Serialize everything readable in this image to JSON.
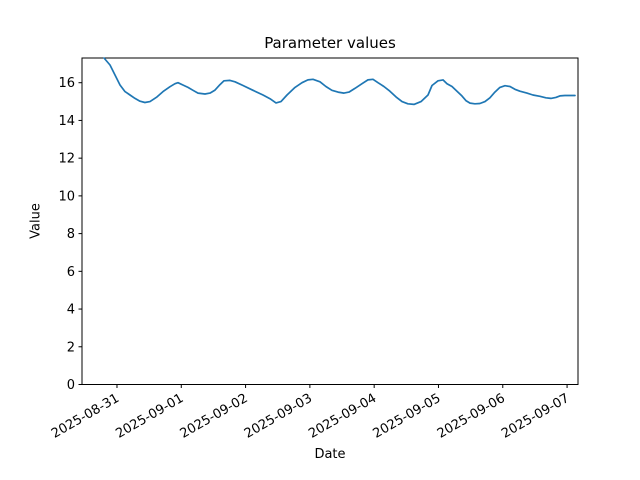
{
  "chart_data": {
    "type": "line",
    "title": "Parameter values",
    "xlabel": "Date",
    "ylabel": "Value",
    "grid": false,
    "legend": null,
    "line_color": "#1f77b4",
    "x_epoch_label": "2025-08-31",
    "x_range_days": [
      -0.544,
      7.17
    ],
    "ylim": [
      0,
      17.31
    ],
    "y_ticks": [
      0,
      2,
      4,
      6,
      8,
      10,
      12,
      14,
      16
    ],
    "x_tick_days": [
      0,
      1,
      2,
      3,
      4,
      5,
      6,
      7
    ],
    "x_tick_labels": [
      "2025-08-31",
      "2025-09-01",
      "2025-09-02",
      "2025-09-03",
      "2025-09-04",
      "2025-09-05",
      "2025-09-06",
      "2025-09-07"
    ],
    "series": [
      {
        "name": "parameter-values",
        "x_days": [
          -0.202,
          -0.109,
          -0.031,
          0.047,
          0.124,
          0.202,
          0.28,
          0.358,
          0.435,
          0.513,
          0.622,
          0.715,
          0.824,
          0.902,
          0.949,
          1.026,
          1.104,
          1.182,
          1.26,
          1.369,
          1.446,
          1.524,
          1.602,
          1.664,
          1.757,
          1.835,
          1.96,
          2.115,
          2.271,
          2.38,
          2.473,
          2.551,
          2.644,
          2.768,
          2.877,
          2.97,
          3.048,
          3.157,
          3.25,
          3.343,
          3.437,
          3.53,
          3.608,
          3.701,
          3.81,
          3.903,
          3.981,
          4.059,
          4.152,
          4.245,
          4.339,
          4.432,
          4.525,
          4.619,
          4.728,
          4.837,
          4.899,
          4.992,
          5.07,
          5.132,
          5.21,
          5.288,
          5.365,
          5.427,
          5.49,
          5.567,
          5.645,
          5.723,
          5.8,
          5.878,
          5.956,
          6.034,
          6.112,
          6.189,
          6.267,
          6.376,
          6.469,
          6.578,
          6.671,
          6.749,
          6.827,
          6.889,
          6.967,
          7.045,
          7.123
        ],
        "values": [
          17.31,
          16.94,
          16.41,
          15.88,
          15.53,
          15.35,
          15.17,
          15.02,
          14.95,
          15.0,
          15.25,
          15.53,
          15.79,
          15.95,
          16.0,
          15.88,
          15.75,
          15.6,
          15.45,
          15.4,
          15.45,
          15.61,
          15.9,
          16.1,
          16.12,
          16.05,
          15.85,
          15.6,
          15.35,
          15.15,
          14.93,
          15.0,
          15.35,
          15.75,
          16.0,
          16.15,
          16.18,
          16.05,
          15.8,
          15.6,
          15.5,
          15.45,
          15.5,
          15.7,
          15.95,
          16.15,
          16.18,
          16.0,
          15.8,
          15.55,
          15.25,
          15.0,
          14.88,
          14.85,
          15.0,
          15.35,
          15.85,
          16.1,
          16.15,
          15.95,
          15.8,
          15.55,
          15.3,
          15.05,
          14.92,
          14.88,
          14.9,
          15.0,
          15.2,
          15.5,
          15.75,
          15.84,
          15.8,
          15.65,
          15.55,
          15.45,
          15.35,
          15.28,
          15.2,
          15.17,
          15.22,
          15.3,
          15.32,
          15.32,
          15.32
        ]
      }
    ]
  }
}
